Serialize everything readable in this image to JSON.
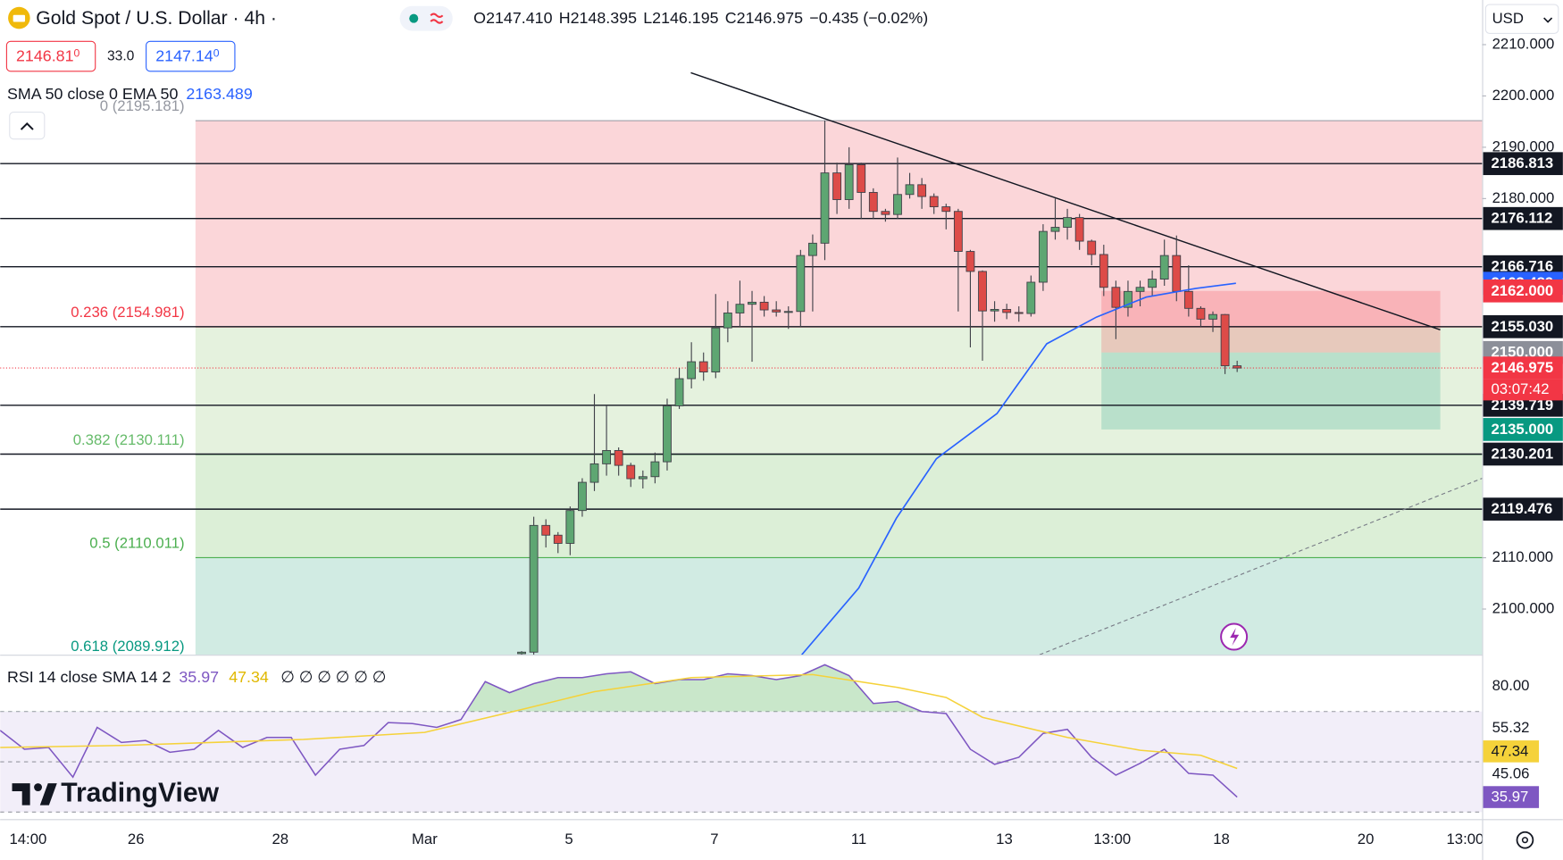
{
  "header": {
    "symbol": "Gold Spot / U.S. Dollar · 4h ·",
    "ohlc": [
      "O2147.410",
      "H2148.395",
      "L2146.195",
      "C2146.975",
      "−0.435 (−0.02%)"
    ],
    "bid": "2146.81",
    "bid_pip": "0",
    "spread": "33.0",
    "ask": "2147.14",
    "ask_pip": "0",
    "indicator": "SMA 50 close 0 EMA 50",
    "currency": "USD",
    "logo": "TradingView"
  },
  "chart_data": [
    {
      "type": "candlestick",
      "colors": {
        "up": "#5ea672",
        "down": "#dd4b48",
        "wick": "#3f4048"
      },
      "x": [
        8,
        9,
        10,
        11,
        12,
        13,
        14,
        15,
        16,
        17,
        18,
        19,
        20,
        21,
        22,
        23,
        24,
        25,
        26,
        27,
        28,
        29,
        30,
        31,
        32,
        33,
        34,
        35,
        36,
        37,
        38,
        39,
        40,
        41,
        42,
        43,
        44,
        45,
        46,
        47,
        48,
        49,
        50,
        51,
        52,
        53,
        54,
        55,
        56,
        57,
        58,
        59,
        60,
        61,
        62,
        63,
        64,
        65,
        66,
        67
      ],
      "open": [
        2091.3,
        2091.6,
        2116.3,
        2114.4,
        2112.8,
        2119.2,
        2124.7,
        2128.3,
        2130.9,
        2128.0,
        2125.4,
        2125.8,
        2128.7,
        2139.6,
        2144.9,
        2148.2,
        2146.2,
        2154.8,
        2157.7,
        2159.4,
        2159.8,
        2158.3,
        2157.9,
        2158.0,
        2168.9,
        2171.3,
        2185.0,
        2179.8,
        2186.6,
        2181.2,
        2177.5,
        2176.9,
        2180.8,
        2182.7,
        2180.4,
        2178.4,
        2177.5,
        2169.7,
        2165.8,
        2158.1,
        2158.4,
        2157.8,
        2157.6,
        2163.7,
        2173.6,
        2174.4,
        2176.3,
        2171.7,
        2169.1,
        2162.7,
        2158.8,
        2161.9,
        2162.7,
        2164.3,
        2168.9,
        2161.9,
        2158.6,
        2156.5,
        2157.4,
        2147.41
      ],
      "high": [
        2091.8,
        2118.0,
        2117.5,
        2115.0,
        2120.0,
        2125.5,
        2141.9,
        2139.7,
        2131.5,
        2128.5,
        2127.0,
        2130.5,
        2141.0,
        2147.0,
        2152.0,
        2150.0,
        2161.4,
        2160.0,
        2164.0,
        2162.0,
        2161.0,
        2160.0,
        2159.0,
        2170.0,
        2173.0,
        2195.2,
        2187.0,
        2190.0,
        2187.0,
        2182.0,
        2178.0,
        2188.0,
        2185.0,
        2184.0,
        2181.0,
        2179.0,
        2178.0,
        2170.0,
        2166.0,
        2160.0,
        2159.5,
        2159.0,
        2165.0,
        2175.0,
        2180.0,
        2178.0,
        2177.0,
        2172.0,
        2171.0,
        2164.0,
        2164.0,
        2164.0,
        2166.0,
        2172.0,
        2172.8,
        2167.0,
        2159.0,
        2158.0,
        2157.5,
        2148.395
      ],
      "low": [
        2091.0,
        2091.0,
        2112.0,
        2110.9,
        2110.5,
        2118.0,
        2123.0,
        2126.0,
        2126.0,
        2123.8,
        2123.5,
        2124.5,
        2127.0,
        2139.0,
        2143.0,
        2144.5,
        2145.0,
        2152.0,
        2155.0,
        2148.2,
        2157.0,
        2157.0,
        2154.6,
        2155.0,
        2158.0,
        2168.0,
        2177.0,
        2178.0,
        2176.0,
        2176.0,
        2175.5,
        2176.0,
        2180.0,
        2178.0,
        2177.0,
        2174.0,
        2158.0,
        2151.0,
        2148.4,
        2156.0,
        2156.5,
        2156.0,
        2157.0,
        2162.0,
        2172.0,
        2172.0,
        2170.0,
        2167.0,
        2161.0,
        2152.6,
        2157.0,
        2159.0,
        2161.0,
        2163.0,
        2160.0,
        2157.0,
        2155.0,
        2154.0,
        2145.8,
        2146.195
      ],
      "close": [
        2091.6,
        2116.3,
        2114.4,
        2112.8,
        2119.2,
        2124.7,
        2128.3,
        2130.9,
        2128.0,
        2125.4,
        2125.8,
        2128.7,
        2139.6,
        2144.9,
        2148.2,
        2146.2,
        2154.8,
        2157.7,
        2159.4,
        2159.8,
        2158.3,
        2157.9,
        2158.0,
        2168.9,
        2171.3,
        2185.0,
        2179.8,
        2186.6,
        2181.2,
        2177.5,
        2176.9,
        2180.8,
        2182.7,
        2180.4,
        2178.4,
        2177.5,
        2169.7,
        2165.8,
        2158.1,
        2158.4,
        2157.8,
        2157.6,
        2163.7,
        2173.6,
        2174.4,
        2176.3,
        2171.7,
        2169.1,
        2162.7,
        2158.8,
        2161.9,
        2162.7,
        2164.3,
        2168.9,
        2161.9,
        2158.6,
        2156.5,
        2157.4,
        2147.41,
        2146.975
      ],
      "xlim": [
        -35,
        87.2
      ],
      "xticks": [
        {
          "value": -32.7,
          "label": "14:00"
        },
        {
          "value": -23.8,
          "label": "26"
        },
        {
          "value": -11.9,
          "label": "28"
        },
        {
          "value": 0,
          "label": "Mar"
        },
        {
          "value": 11.9,
          "label": "5"
        },
        {
          "value": 23.9,
          "label": "7"
        },
        {
          "value": 35.8,
          "label": "11"
        },
        {
          "value": 47.8,
          "label": "13"
        },
        {
          "value": 56.7,
          "label": "13:00"
        },
        {
          "value": 65.7,
          "label": "18"
        },
        {
          "value": 77.6,
          "label": "20"
        },
        {
          "value": 85.8,
          "label": "13:00"
        }
      ],
      "ylim": [
        2091.1,
        2218.7
      ],
      "yticks": [
        {
          "value": 2210,
          "label": "2210.000"
        },
        {
          "value": 2200,
          "label": "2200.000"
        },
        {
          "value": 2190,
          "label": "2190.000"
        },
        {
          "value": 2180,
          "label": "2180.000"
        },
        {
          "value": 2110,
          "label": "2110.000"
        },
        {
          "value": 2100,
          "label": "2100.000"
        }
      ],
      "ema": {
        "color": "#2962ff",
        "x": [
          31.1,
          35.8,
          38.9,
          42.2,
          47.2,
          51.3,
          55.4,
          59.5,
          63.6,
          66.9
        ],
        "values": [
          2091.1,
          2104.1,
          2117.7,
          2129.3,
          2138.1,
          2151.7,
          2156.9,
          2160.8,
          2162.5,
          2163.5
        ],
        "last": {
          "value": 2163.489,
          "label": "2163.489"
        }
      },
      "levels": [
        {
          "value": 2186.813,
          "label": "2186.813"
        },
        {
          "value": 2176.112,
          "label": "2176.112"
        },
        {
          "value": 2166.716,
          "label": "2166.716"
        },
        {
          "value": 2155.03,
          "label": "2155.030"
        },
        {
          "value": 2139.719,
          "label": "2139.719"
        },
        {
          "value": 2130.201,
          "label": "2130.201"
        },
        {
          "value": 2119.476,
          "label": "2119.476"
        }
      ],
      "fib": [
        {
          "value": 2195.181,
          "label": "0 (2195.181)",
          "color": "#9598a1",
          "fill": "#fbd6d9"
        },
        {
          "value": 2154.981,
          "label": "0.236 (2154.981)",
          "color": "#f23645",
          "fill": "#e5f2de"
        },
        {
          "value": 2130.111,
          "label": "0.382 (2130.111)",
          "color": "#66bb6a",
          "fill": "#dcefd7"
        },
        {
          "value": 2110.011,
          "label": "0.5 (2110.011)",
          "color": "#4caf50",
          "fill": "#d1ebe3"
        },
        {
          "value": 2089.912,
          "label": "0.618 (2089.912)",
          "color": "#089981",
          "fill": "#d1ebe3"
        }
      ],
      "position": [
        {
          "value": 2162.0,
          "label": "2162.000",
          "color": "#f23645"
        },
        {
          "value": 2150.0,
          "label": "2150.000",
          "color": "#8c8f99"
        },
        {
          "value": 2135.0,
          "label": "2135.000",
          "color": "#089981"
        }
      ],
      "last_price": {
        "value": 2146.975,
        "label": "2146.975",
        "countdown": "03:07:42",
        "color": "#f23645"
      }
    },
    {
      "type": "line",
      "title": "RSI 14 close SMA 14 2",
      "placeholders": "∅ ∅ ∅ ∅ ∅ ∅",
      "series": [
        {
          "color": "#7e57c2",
          "x": [
            -35,
            -33,
            -31,
            -29,
            -27,
            -25,
            -23,
            -21,
            -19,
            -17,
            -15,
            -13,
            -11,
            -9,
            -7,
            -5,
            -3,
            -1,
            1,
            3,
            5,
            7,
            9,
            11,
            13,
            15,
            17,
            19,
            21,
            23,
            25,
            27,
            29,
            31,
            33,
            35,
            37,
            39,
            41,
            43,
            45,
            47,
            49,
            51,
            53,
            55,
            57,
            59,
            61,
            63,
            65,
            67
          ],
          "values": [
            62.5,
            55.0,
            55.7,
            43.9,
            63.7,
            57.7,
            58.5,
            53.8,
            55.0,
            62.5,
            55.7,
            59.7,
            59.7,
            44.7,
            55.0,
            56.5,
            65.6,
            65.2,
            63.7,
            66.8,
            81.9,
            77.5,
            81.1,
            83.5,
            83.5,
            85.0,
            85.8,
            81.1,
            82.7,
            82.7,
            85.0,
            84.3,
            82.7,
            84.3,
            88.6,
            84.3,
            73.2,
            74.0,
            70.0,
            69.2,
            55.0,
            49.0,
            51.8,
            61.3,
            62.9,
            51.8,
            44.7,
            49.4,
            55.0,
            45.4,
            44.7,
            35.97
          ]
        },
        {
          "color": "#f5d23a",
          "x": [
            -35,
            -25,
            -10,
            0,
            8,
            14,
            22,
            32,
            39,
            43,
            46,
            53,
            59,
            64,
            67
          ],
          "values": [
            55.7,
            56.5,
            58.9,
            61.7,
            70.8,
            77.9,
            83.5,
            84.7,
            79.6,
            75.6,
            67.7,
            59.7,
            54.6,
            52.6,
            47.34
          ]
        }
      ],
      "ylim": [
        27.2,
        92.2
      ],
      "yticks": [
        {
          "value": 80,
          "label": "80.00"
        }
      ],
      "bands": [
        70,
        50,
        30
      ],
      "scale_labels": [
        {
          "value": 55.32,
          "label": "55.32"
        },
        {
          "value": 45.06,
          "label": "45.06"
        }
      ]
    }
  ]
}
